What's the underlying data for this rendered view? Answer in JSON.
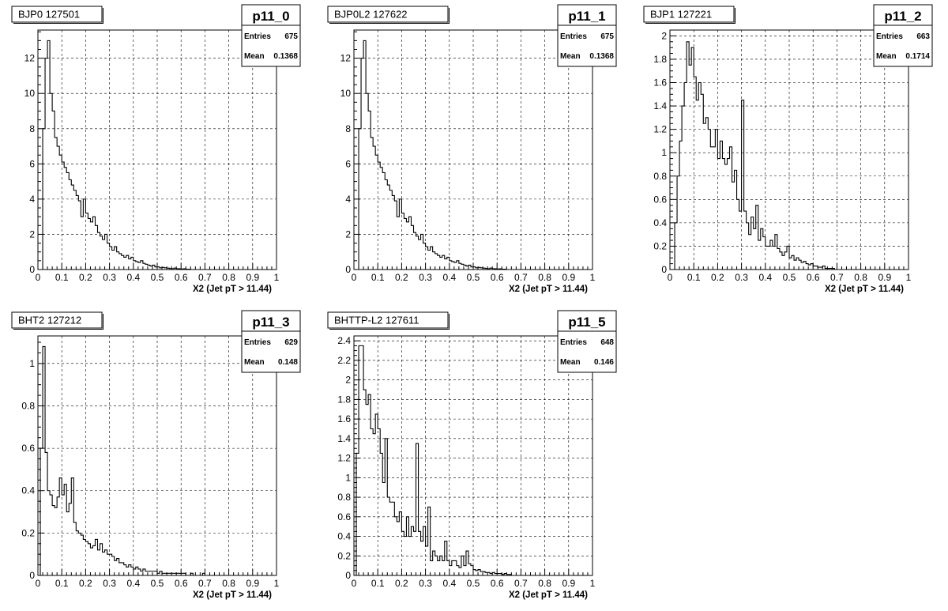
{
  "chart_data": [
    {
      "type": "histogram",
      "title": "BJP0 127501",
      "stats_name": "p11_0",
      "stats": [
        {
          "label": "Entries",
          "value": "675"
        },
        {
          "label": "Mean",
          "value": "0.1368"
        }
      ],
      "xlabel": "X2 (Jet pT > 11.44)",
      "xlim": [
        0,
        1
      ],
      "ylim": [
        0,
        13.6
      ],
      "xticks": [
        "0",
        "0.1",
        "0.2",
        "0.3",
        "0.4",
        "0.5",
        "0.6",
        "0.7",
        "0.8",
        "0.9",
        "1"
      ],
      "yticks": [
        0,
        2,
        4,
        6,
        8,
        10,
        12
      ],
      "bin_width": 0.01,
      "values": [
        0,
        0,
        8,
        12,
        13,
        10,
        9,
        7.5,
        7,
        6.5,
        6.1,
        5.8,
        5.5,
        5.1,
        4.8,
        4.5,
        4.2,
        3.9,
        3,
        4,
        3.2,
        2.9,
        2.7,
        3,
        2.5,
        2.1,
        1.9,
        1.7,
        2,
        1.5,
        1.3,
        1.1,
        1.3,
        1,
        0.9,
        0.8,
        0.7,
        0.8,
        0.6,
        0.7,
        0.5,
        0.45,
        0.4,
        0.5,
        0.35,
        0.3,
        0.25,
        0.2,
        0.25,
        0.15,
        0.15,
        0.1,
        0.12,
        0.1,
        0.08,
        0.06,
        0.05,
        0.08,
        0.05,
        0.04,
        0.03,
        0.04,
        0.02,
        0.02,
        0,
        0,
        0,
        0,
        0,
        0,
        0,
        0,
        0,
        0,
        0,
        0,
        0,
        0,
        0,
        0,
        0,
        0,
        0,
        0,
        0,
        0,
        0,
        0,
        0,
        0,
        0,
        0,
        0,
        0,
        0,
        0,
        0,
        0,
        0,
        0
      ]
    },
    {
      "type": "histogram",
      "title": "BJP0L2 127622",
      "stats_name": "p11_1",
      "stats": [
        {
          "label": "Entries",
          "value": "675"
        },
        {
          "label": "Mean",
          "value": "0.1368"
        }
      ],
      "xlabel": "X2 (Jet pT > 11.44)",
      "xlim": [
        0,
        1
      ],
      "ylim": [
        0,
        13.6
      ],
      "xticks": [
        "0",
        "0.1",
        "0.2",
        "0.3",
        "0.4",
        "0.5",
        "0.6",
        "0.7",
        "0.8",
        "0.9",
        "1"
      ],
      "yticks": [
        0,
        2,
        4,
        6,
        8,
        10,
        12
      ],
      "bin_width": 0.01,
      "values": [
        0,
        0,
        8,
        12,
        13,
        10,
        9,
        7.5,
        7,
        6.5,
        6.1,
        5.8,
        5.5,
        5.1,
        4.8,
        4.5,
        4.2,
        3.9,
        3,
        4,
        3.2,
        2.9,
        2.7,
        3,
        2.5,
        2.1,
        1.9,
        1.7,
        2,
        1.5,
        1.3,
        1.1,
        1.3,
        1,
        0.9,
        0.8,
        0.7,
        0.8,
        0.6,
        0.7,
        0.5,
        0.45,
        0.4,
        0.5,
        0.35,
        0.3,
        0.25,
        0.2,
        0.25,
        0.15,
        0.15,
        0.1,
        0.12,
        0.1,
        0.08,
        0.06,
        0.05,
        0.08,
        0.05,
        0.04,
        0.03,
        0.04,
        0.02,
        0.02,
        0,
        0,
        0,
        0,
        0,
        0,
        0,
        0,
        0,
        0,
        0,
        0,
        0,
        0,
        0,
        0,
        0,
        0,
        0,
        0,
        0,
        0,
        0,
        0,
        0,
        0,
        0,
        0,
        0,
        0,
        0,
        0,
        0,
        0,
        0,
        0
      ]
    },
    {
      "type": "histogram",
      "title": "BJP1 127221",
      "stats_name": "p11_2",
      "stats": [
        {
          "label": "Entries",
          "value": "663"
        },
        {
          "label": "Mean",
          "value": "0.1714"
        }
      ],
      "xlabel": "X2 (Jet pT > 11.44)",
      "xlim": [
        0,
        1
      ],
      "ylim": [
        0,
        2.05
      ],
      "xticks": [
        "0",
        "0.1",
        "0.2",
        "0.3",
        "0.4",
        "0.5",
        "0.6",
        "0.7",
        "0.8",
        "0.9",
        "1"
      ],
      "yticks": [
        0,
        0.2,
        0.4,
        0.6,
        0.8,
        1,
        1.2,
        1.4,
        1.6,
        1.8,
        2
      ],
      "bin_width": 0.01,
      "values": [
        0,
        0,
        0.4,
        0.8,
        1.1,
        1.4,
        1.6,
        1.95,
        1.75,
        1.9,
        1.65,
        1.45,
        1.6,
        1.5,
        1.25,
        1.3,
        1.2,
        1.05,
        1.05,
        1.2,
        0.95,
        1.1,
        0.95,
        0.9,
        0.95,
        1.05,
        0.75,
        0.85,
        0.6,
        0.5,
        1.45,
        0.5,
        0.4,
        0.3,
        0.45,
        0.35,
        0.55,
        0.25,
        0.35,
        0.28,
        0.2,
        0.2,
        0.25,
        0.2,
        0.3,
        0.18,
        0.15,
        0.12,
        0.15,
        0.2,
        0.1,
        0.12,
        0.08,
        0.1,
        0.08,
        0.06,
        0.07,
        0.05,
        0.04,
        0.05,
        0.03,
        0.03,
        0.02,
        0.02,
        0.03,
        0.01,
        0.01,
        0.01,
        0.01,
        0,
        0,
        0,
        0,
        0,
        0,
        0,
        0,
        0,
        0,
        0,
        0,
        0,
        0,
        0,
        0,
        0,
        0,
        0,
        0,
        0,
        0,
        0,
        0,
        0,
        0,
        0,
        0,
        0,
        0,
        0
      ]
    },
    {
      "type": "histogram",
      "title": "BHT2 127212",
      "stats_name": "p11_3",
      "stats": [
        {
          "label": "Entries",
          "value": "629"
        },
        {
          "label": "Mean",
          "value": "0.148"
        }
      ],
      "xlabel": "X2 (Jet pT > 11.44)",
      "xlim": [
        0,
        1
      ],
      "ylim": [
        0,
        1.13
      ],
      "xticks": [
        "0",
        "0.1",
        "0.2",
        "0.3",
        "0.4",
        "0.5",
        "0.6",
        "0.7",
        "0.8",
        "0.9",
        "1"
      ],
      "yticks": [
        0,
        0.2,
        0.4,
        0.6,
        0.8,
        1
      ],
      "bin_width": 0.01,
      "values": [
        0,
        0.6,
        1.08,
        0.58,
        0.4,
        0.38,
        0.33,
        0.32,
        0.37,
        0.46,
        0.38,
        0.43,
        0.3,
        0.34,
        0.46,
        0.25,
        0.21,
        0.2,
        0.19,
        0.17,
        0.16,
        0.15,
        0.13,
        0.14,
        0.17,
        0.12,
        0.15,
        0.11,
        0.12,
        0.1,
        0.1,
        0.09,
        0.07,
        0.08,
        0.06,
        0.06,
        0.05,
        0.04,
        0.05,
        0.04,
        0.03,
        0.04,
        0.03,
        0.02,
        0.03,
        0.02,
        0.02,
        0.02,
        0.02,
        0.02,
        0.01,
        0.02,
        0.01,
        0.01,
        0.01,
        0.01,
        0.01,
        0.01,
        0.01,
        0.01,
        0.01,
        0.01,
        0,
        0,
        0.01,
        0,
        0,
        0,
        0,
        0.01,
        0,
        0,
        0,
        0,
        0,
        0,
        0,
        0,
        0,
        0,
        0,
        0,
        0,
        0,
        0,
        0,
        0,
        0,
        0,
        0,
        0,
        0,
        0,
        0,
        0,
        0,
        0,
        0,
        0,
        0
      ]
    },
    {
      "type": "histogram",
      "title": "BHTTP-L2 127611",
      "stats_name": "p11_5",
      "stats": [
        {
          "label": "Entries",
          "value": "648"
        },
        {
          "label": "Mean",
          "value": "0.146"
        }
      ],
      "xlabel": "X2 (Jet pT > 11.44)",
      "xlim": [
        0,
        1
      ],
      "ylim": [
        0,
        2.45
      ],
      "xticks": [
        "0",
        "0.1",
        "0.2",
        "0.3",
        "0.4",
        "0.5",
        "0.6",
        "0.7",
        "0.8",
        "0.9",
        "1"
      ],
      "yticks": [
        0,
        0.2,
        0.4,
        0.6,
        0.8,
        1,
        1.2,
        1.4,
        1.6,
        1.8,
        2,
        2.2,
        2.4
      ],
      "bin_width": 0.01,
      "values": [
        0,
        1.25,
        2.35,
        2.35,
        1.9,
        1.75,
        1.85,
        1.5,
        1.45,
        1.65,
        1.5,
        1.25,
        0.95,
        1.4,
        0.8,
        0.75,
        0.75,
        0.6,
        0.55,
        0.65,
        0.45,
        0.4,
        0.6,
        0.4,
        0.5,
        0.45,
        1.35,
        0.45,
        0.35,
        0.5,
        0.3,
        0.7,
        0.15,
        0.25,
        0.2,
        0.15,
        0.2,
        0.15,
        0.35,
        0.15,
        0.1,
        0.15,
        0.15,
        0.1,
        0.08,
        0.2,
        0.1,
        0.25,
        0.12,
        0.1,
        0.06,
        0.05,
        0.06,
        0.04,
        0.04,
        0.03,
        0.03,
        0.02,
        0.03,
        0.02,
        0.02,
        0.02,
        0.01,
        0.02,
        0.01,
        0.01,
        0,
        0,
        0,
        0,
        0,
        0,
        0,
        0,
        0,
        0,
        0,
        0,
        0,
        0,
        0,
        0,
        0,
        0,
        0,
        0,
        0,
        0,
        0,
        0,
        0,
        0,
        0,
        0,
        0,
        0,
        0,
        0,
        0,
        0
      ]
    }
  ]
}
